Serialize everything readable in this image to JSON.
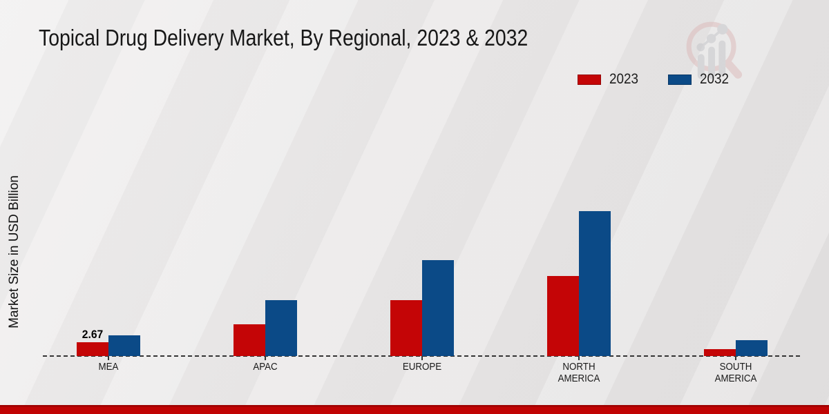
{
  "title": "Topical Drug Delivery Market, By Regional, 2023 & 2032",
  "legend": {
    "items": [
      {
        "label": "2023",
        "color": "#c40506"
      },
      {
        "label": "2032",
        "color": "#0b4a87"
      }
    ]
  },
  "chart_data": {
    "type": "bar",
    "title": "Topical Drug Delivery Market, By Regional, 2023 & 2032",
    "categories": [
      "MEA",
      "APAC",
      "EUROPE",
      "NORTH AMERICA",
      "SOUTH AMERICA"
    ],
    "series": [
      {
        "name": "2023",
        "color": "#c40506",
        "values": [
          2.67,
          6.05,
          10.66,
          15.26,
          1.32
        ]
      },
      {
        "name": "2032",
        "color": "#0b4a87",
        "values": [
          3.95,
          10.66,
          18.29,
          27.63,
          3.03
        ]
      }
    ],
    "xlabel": "",
    "ylabel": "Market Size in USD Billion",
    "ylim": [
      0,
      30
    ],
    "grid": false,
    "legend_position": "top-right",
    "baseline_style": "dashed",
    "annotations": [
      {
        "series": "2023",
        "category": "MEA",
        "text": "2.67"
      }
    ]
  },
  "watermark": {
    "name": "magnifier-growth-chart-logo"
  },
  "footer": {
    "accent_color": "#c00303"
  }
}
